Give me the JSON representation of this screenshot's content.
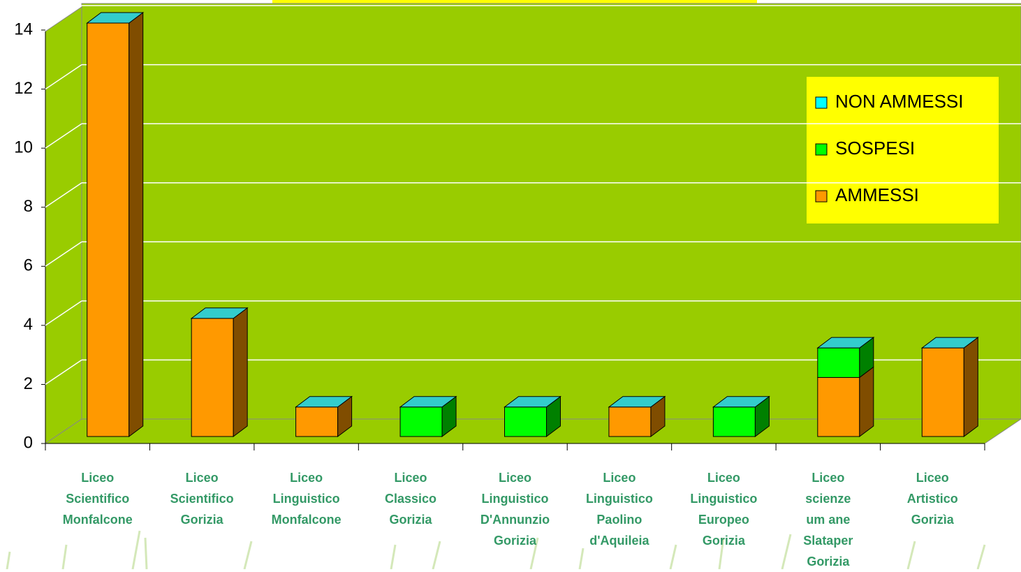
{
  "chart_data": {
    "type": "bar3d_stacked",
    "categories": [
      "Liceo\nScientifico\nMonfalcone",
      "Liceo\nScientifico\nGorizia",
      "Liceo\nLinguistico\nMonfalcone",
      "Liceo\nClassico\nGorizia",
      "Liceo\nLinguistico\nD'Annunzio\nGorizia",
      "Liceo\nLinguistico\nPaolino\nd'Aquileia",
      "Liceo\nLinguistico\nEuropeo\nGorizia",
      "Liceo\nscienze\num ane\nSlataper\nGorizia",
      "Liceo\nArtistico\nGorizìa"
    ],
    "series": [
      {
        "name": "AMMESSI",
        "color": "#ff9900",
        "values": [
          14,
          4,
          1,
          0,
          0,
          1,
          0,
          2,
          3
        ]
      },
      {
        "name": "SOSPESI",
        "color": "#00ff00",
        "values": [
          0,
          0,
          0,
          1,
          1,
          0,
          1,
          1,
          0
        ]
      },
      {
        "name": "NON AMMESSI",
        "color": "#33cccc",
        "values": [
          0,
          0,
          0,
          0,
          0,
          0,
          0,
          0,
          0
        ]
      }
    ],
    "ylim": [
      0,
      14
    ],
    "yticks": [
      0,
      2,
      4,
      6,
      8,
      10,
      12,
      14
    ],
    "grid": true,
    "legend": "right"
  }
}
